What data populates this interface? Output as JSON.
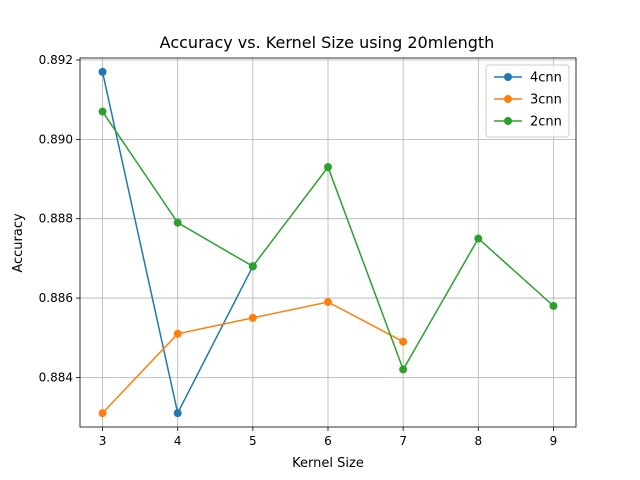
{
  "chart_data": {
    "type": "line",
    "title": "Accuracy vs. Kernel Size using 20mlength",
    "xlabel": "Kernel Size",
    "ylabel": "Accuracy",
    "xlim": [
      2.7,
      9.3
    ],
    "ylim": [
      0.88275,
      0.89205
    ],
    "xticks": [
      3,
      4,
      5,
      6,
      7,
      8,
      9
    ],
    "yticks": [
      0.884,
      0.886,
      0.888,
      0.89,
      0.892
    ],
    "ytick_labels": [
      "0.884",
      "0.886",
      "0.888",
      "0.890",
      "0.892"
    ],
    "grid": true,
    "legend_position": "top-right",
    "series": [
      {
        "name": "4cnn",
        "color": "#1f77b4",
        "x": [
          3,
          4,
          5
        ],
        "values": [
          0.8917,
          0.8831,
          0.8868
        ]
      },
      {
        "name": "3cnn",
        "color": "#ff7f0e",
        "x": [
          3,
          4,
          5,
          6,
          7
        ],
        "values": [
          0.8831,
          0.8851,
          0.8855,
          0.8859,
          0.8849
        ]
      },
      {
        "name": "2cnn",
        "color": "#2ca02c",
        "x": [
          3,
          4,
          5,
          6,
          7,
          8,
          9
        ],
        "values": [
          0.8907,
          0.8879,
          0.8868,
          0.8893,
          0.8842,
          0.8875,
          0.8858
        ]
      }
    ]
  }
}
